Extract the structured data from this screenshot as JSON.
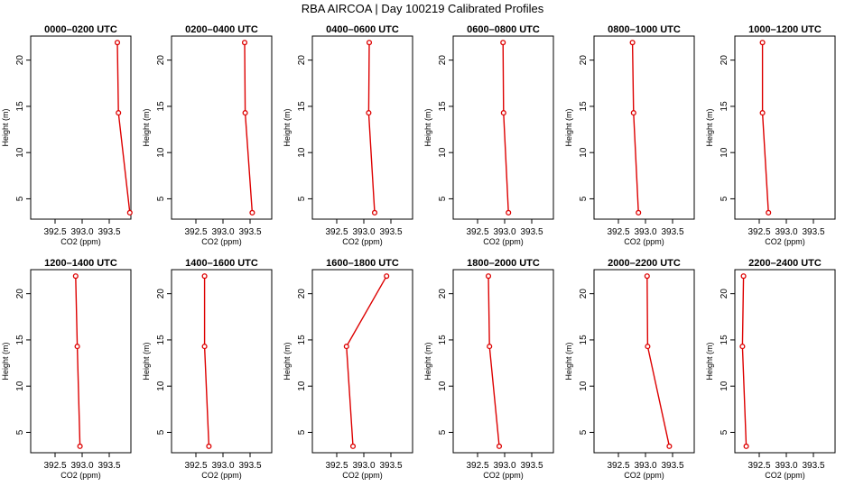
{
  "chart_data": {
    "type": "line",
    "title": "RBA AIRCOA |  Day 100219  Calibrated Profiles",
    "xlabel": "CO2 (ppm)",
    "ylabel": "Height (m)",
    "xlim": [
      392.05,
      393.9
    ],
    "ylim": [
      2.8,
      22.6
    ],
    "xticks": [
      "392.5",
      "393.0",
      "393.5"
    ],
    "yticks": [
      "5",
      "10",
      "15",
      "20"
    ],
    "line_color": "#dd0000",
    "panels": [
      {
        "title": "0000–0200 UTC",
        "x": [
          393.65,
          393.67,
          393.88
        ],
        "y": [
          21.9,
          14.3,
          3.5
        ]
      },
      {
        "title": "0200–0400 UTC",
        "x": [
          393.4,
          393.41,
          393.54
        ],
        "y": [
          21.9,
          14.3,
          3.5
        ]
      },
      {
        "title": "0400–0600 UTC",
        "x": [
          393.1,
          393.09,
          393.2
        ],
        "y": [
          21.9,
          14.3,
          3.5
        ]
      },
      {
        "title": "0600–0800 UTC",
        "x": [
          392.97,
          392.98,
          393.07
        ],
        "y": [
          21.9,
          14.3,
          3.5
        ]
      },
      {
        "title": "0800–1000 UTC",
        "x": [
          392.76,
          392.78,
          392.87
        ],
        "y": [
          21.9,
          14.3,
          3.5
        ]
      },
      {
        "title": "1000–1200 UTC",
        "x": [
          392.56,
          392.56,
          392.67
        ],
        "y": [
          21.9,
          14.3,
          3.5
        ]
      },
      {
        "title": "1200–1400 UTC",
        "x": [
          392.88,
          392.91,
          392.96
        ],
        "y": [
          21.9,
          14.3,
          3.5
        ]
      },
      {
        "title": "1400–1600 UTC",
        "x": [
          392.66,
          392.66,
          392.74
        ],
        "y": [
          21.9,
          14.3,
          3.5
        ]
      },
      {
        "title": "1600–1800 UTC",
        "x": [
          393.42,
          392.68,
          392.8
        ],
        "y": [
          21.9,
          14.3,
          3.5
        ]
      },
      {
        "title": "1800–2000 UTC",
        "x": [
          392.7,
          392.72,
          392.9
        ],
        "y": [
          21.9,
          14.3,
          3.5
        ]
      },
      {
        "title": "2000–2200 UTC",
        "x": [
          393.03,
          393.04,
          393.44
        ],
        "y": [
          21.9,
          14.3,
          3.5
        ]
      },
      {
        "title": "2200–2400 UTC",
        "x": [
          392.21,
          392.19,
          392.26
        ],
        "y": [
          21.9,
          14.3,
          3.5
        ]
      }
    ]
  }
}
